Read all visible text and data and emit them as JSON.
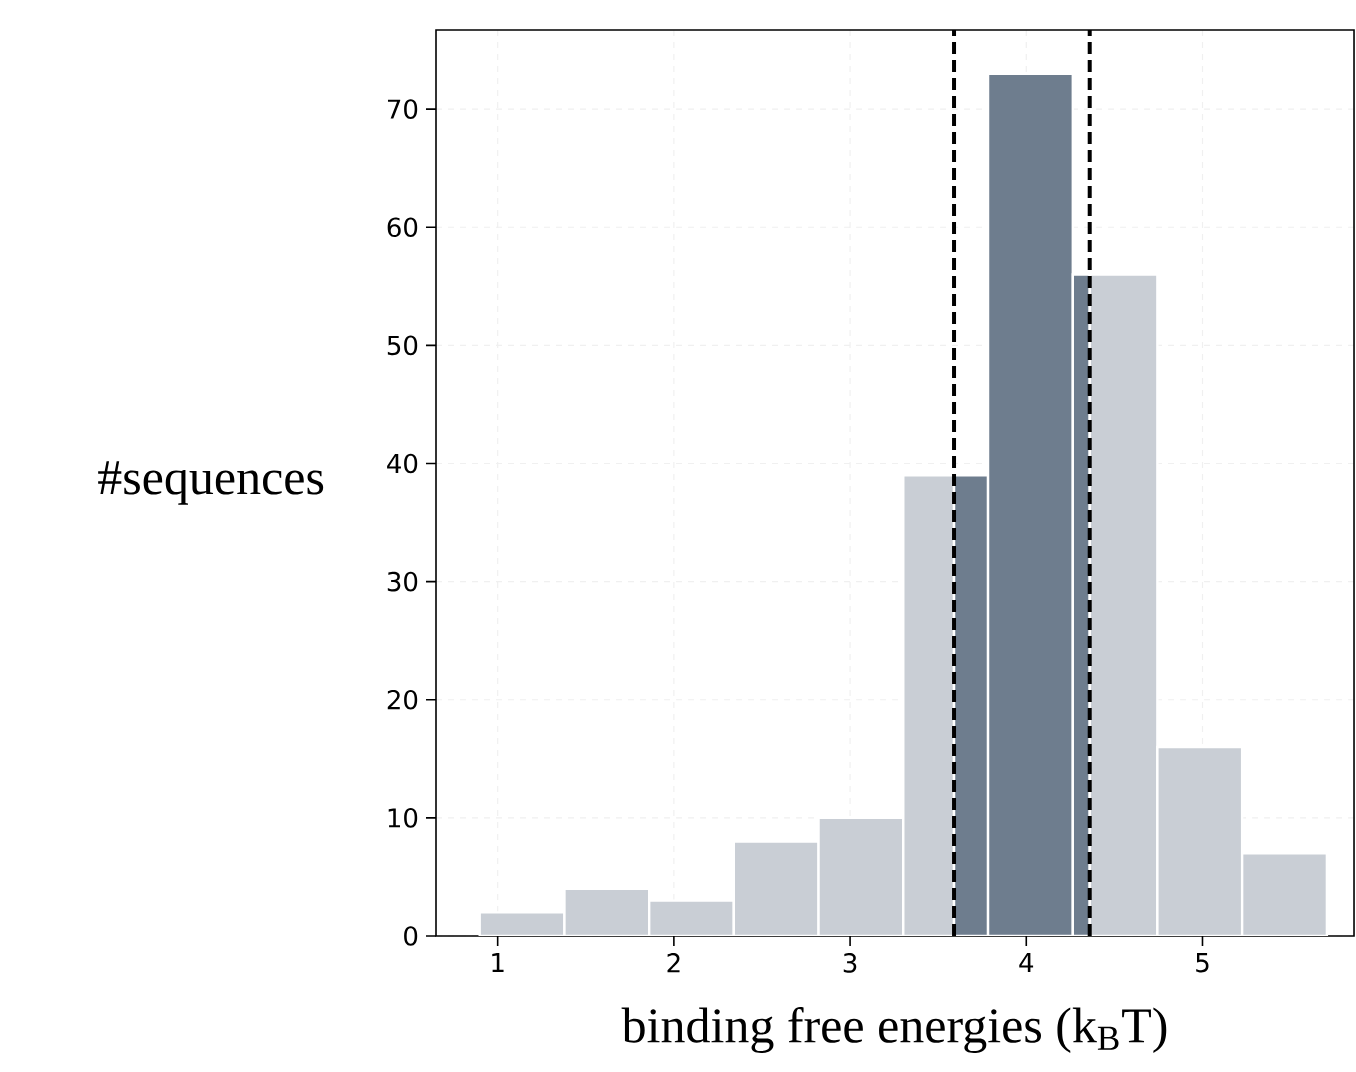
{
  "chart_data": {
    "type": "histogram",
    "xlabel": "binding free energies (k$_{B}$T)",
    "ylabel": "#sequences",
    "bins": [
      0.898,
      1.379,
      1.86,
      2.34,
      2.821,
      3.302,
      3.59,
      3.783,
      4.264,
      4.36,
      4.744,
      5.225,
      5.706
    ],
    "values": [
      2,
      4,
      3,
      8,
      10,
      39,
      39,
      73,
      56,
      56,
      16,
      7
    ],
    "colors": [
      "#c9ced5",
      "#c9ced5",
      "#c9ced5",
      "#c9ced5",
      "#c9ced5",
      "#c9ced5",
      "#6e7d8e",
      "#6e7d8e",
      "#6e7d8e",
      "#c9ced5",
      "#c9ced5",
      "#c9ced5"
    ],
    "xlim": [
      0.65,
      5.86
    ],
    "ylim": [
      0,
      76.7
    ],
    "xticks": [
      1,
      2,
      3,
      4,
      5
    ],
    "yticks": [
      0,
      10,
      20,
      30,
      40,
      50,
      60,
      70
    ],
    "grid": true,
    "ref_lines": [
      {
        "axis": "x",
        "value": 3.59,
        "color": "#000000",
        "line_style": "dashed"
      },
      {
        "axis": "x",
        "value": 4.36,
        "color": "#000000",
        "line_style": "dashed"
      }
    ]
  }
}
